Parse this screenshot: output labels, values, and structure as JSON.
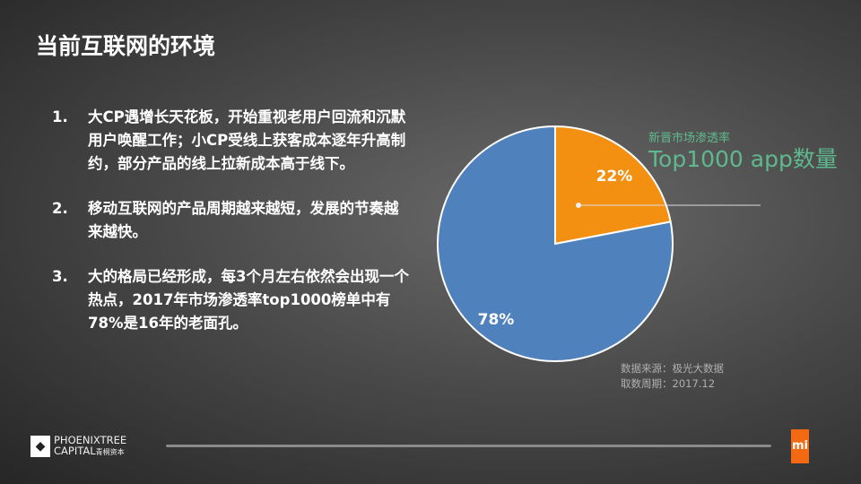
{
  "title": "当前互联网的环境",
  "points": [
    {
      "num": "1.",
      "text": "大CP遇增长天花板，开始重视老用户回流和沉默用户唤醒工作；小CP受线上获客成本逐年升高制约，部分产品的线上拉新成本高于线下。"
    },
    {
      "num": "2.",
      "text": "移动互联网的产品周期越来越短，发展的节奏越来越快。"
    },
    {
      "num": "3.",
      "text": "大的格局已经形成，每3个月左右依然会出现一个热点，2017年市场渗透率top1000榜单中有78%是16年的老面孔。"
    }
  ],
  "chart_data": {
    "type": "pie",
    "title": "Top1000 app数量",
    "subtitle": "新晋市场渗透率",
    "slices": [
      {
        "label": "22%",
        "value": 22,
        "color": "#f39012"
      },
      {
        "label": "78%",
        "value": 78,
        "color": "#4f81bd"
      }
    ]
  },
  "source": {
    "line1": "数据来源：极光大数据",
    "line2": "取数周期：2017.12"
  },
  "footer": {
    "logo_line1": "PHOENIXTREE",
    "logo_line2": "CAPITAL",
    "logo_cn": "青桐资本",
    "mi_logo": "mi"
  }
}
